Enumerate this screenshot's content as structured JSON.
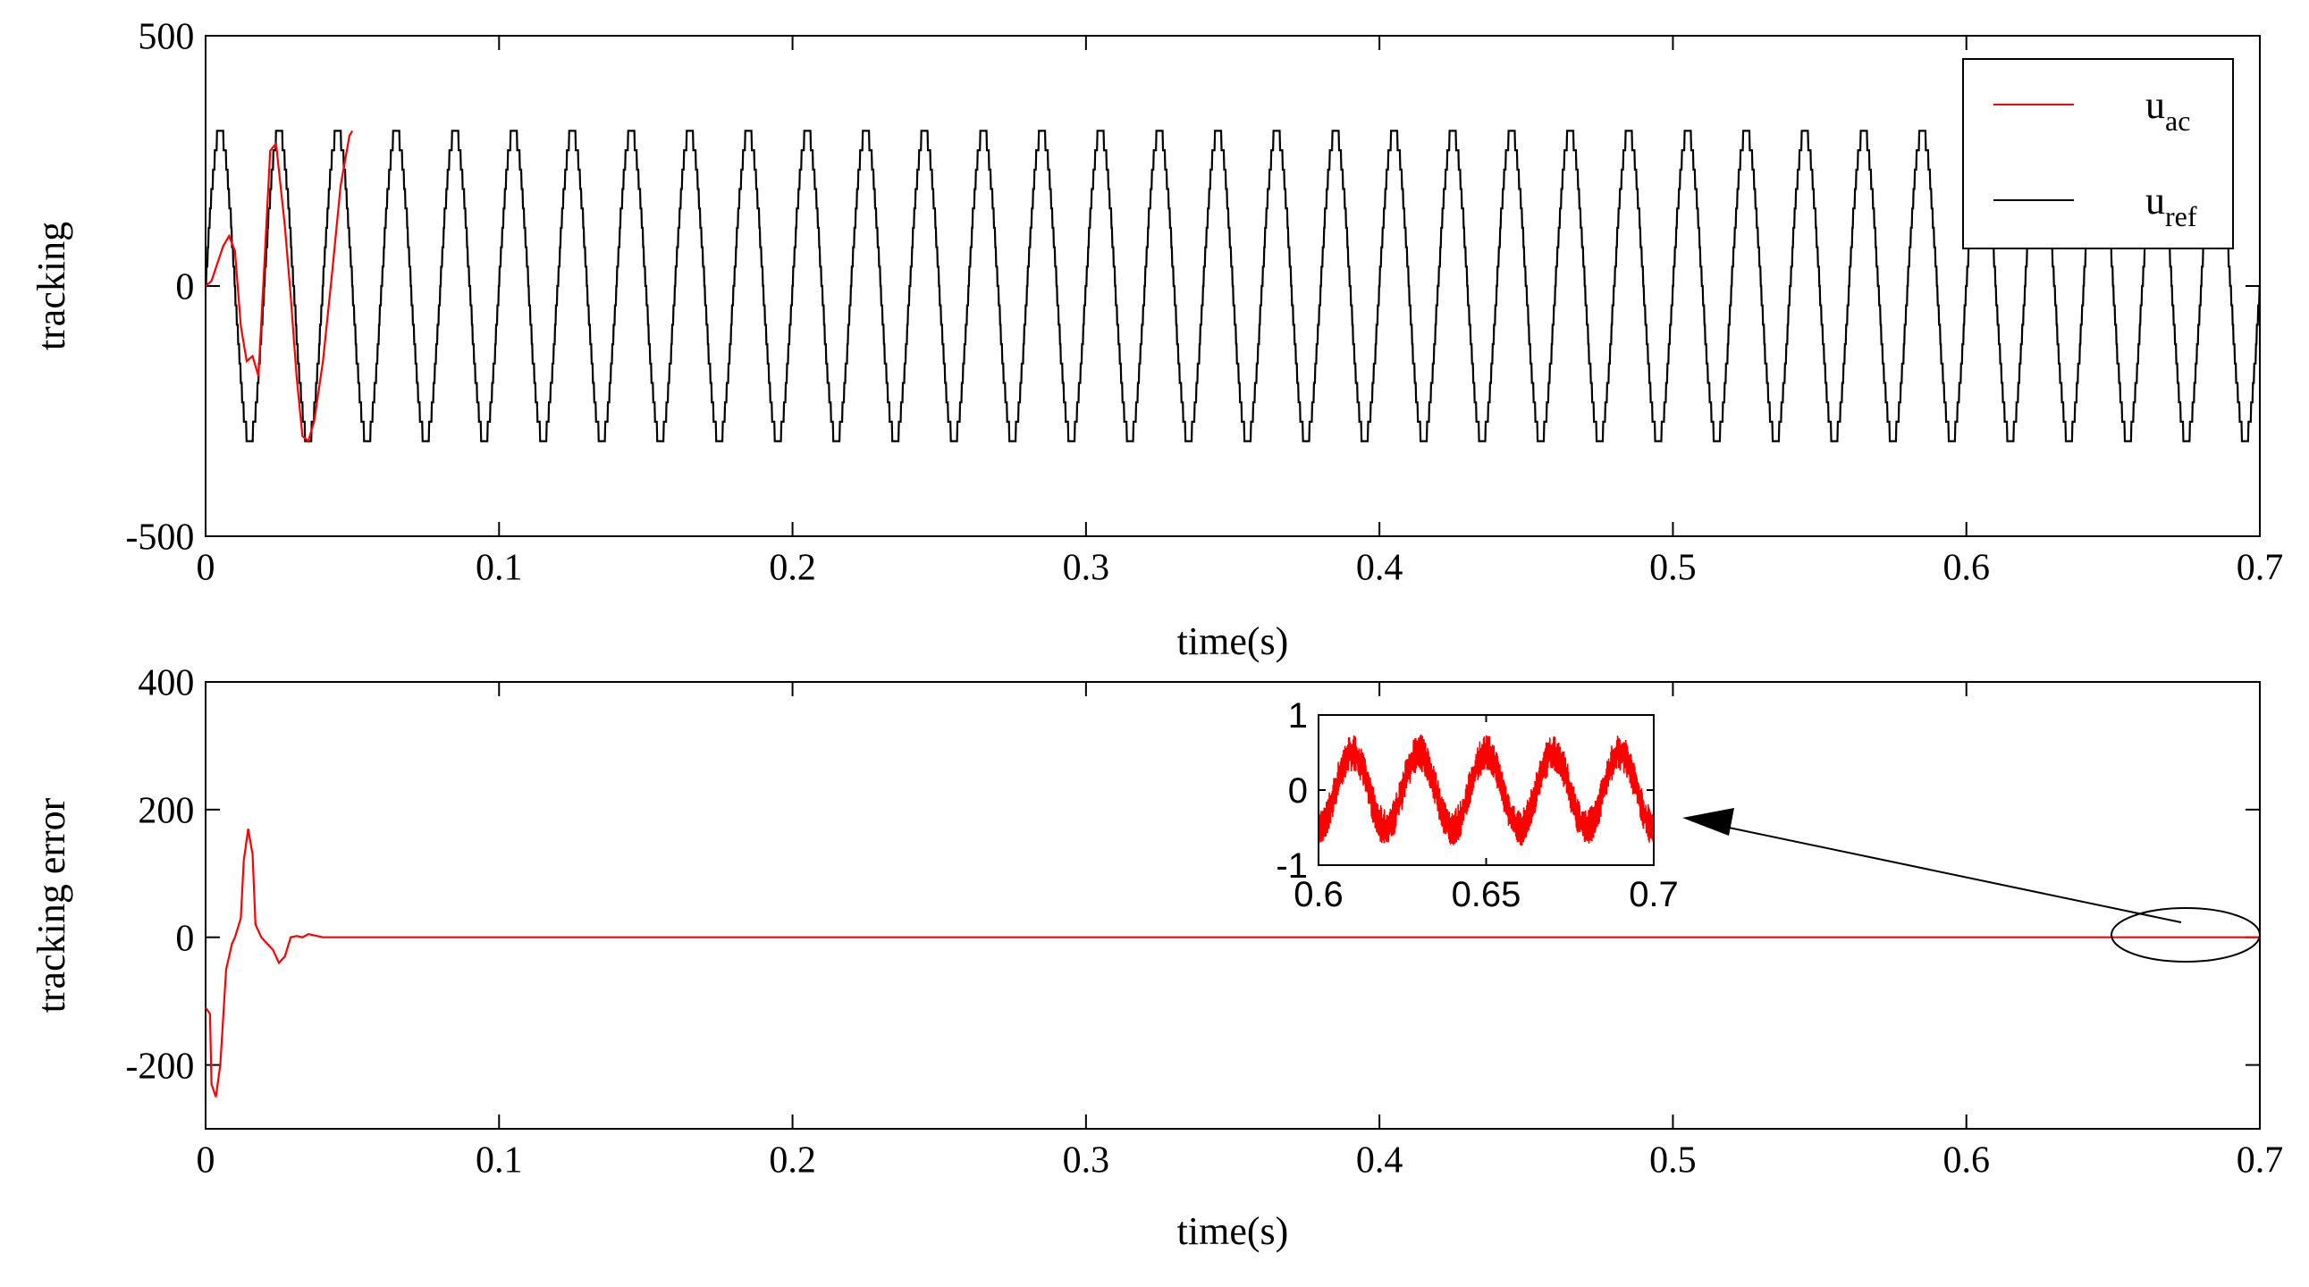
{
  "chart_data": [
    {
      "type": "line",
      "ylabel": "tracking",
      "xlabel": "time(s)",
      "xlim": [
        0,
        0.7
      ],
      "ylim": [
        -500,
        500
      ],
      "xticks": [
        0,
        0.1,
        0.2,
        0.3,
        0.4,
        0.5,
        0.6,
        0.7
      ],
      "xtick_labels": [
        "0",
        "0.1",
        "0.2",
        "0.3",
        "0.4",
        "0.5",
        "0.6",
        "0.7"
      ],
      "yticks": [
        -500,
        0,
        500
      ],
      "ytick_labels": [
        "-500",
        "0",
        "500"
      ],
      "grid": false,
      "legend": "top-right",
      "series": [
        {
          "name": "uac",
          "name_main": "u",
          "name_sub": "ac",
          "color": "#ff0000",
          "points": [
            [
              0.0,
              0
            ],
            [
              0.002,
              10
            ],
            [
              0.004,
              45
            ],
            [
              0.006,
              80
            ],
            [
              0.008,
              100
            ],
            [
              0.01,
              70
            ],
            [
              0.012,
              -80
            ],
            [
              0.014,
              -150
            ],
            [
              0.016,
              -140
            ],
            [
              0.018,
              -180
            ],
            [
              0.02,
              40
            ],
            [
              0.022,
              270
            ],
            [
              0.024,
              285
            ],
            [
              0.025,
              230
            ],
            [
              0.027,
              120
            ],
            [
              0.029,
              -20
            ],
            [
              0.031,
              -180
            ],
            [
              0.033,
              -300
            ],
            [
              0.035,
              -310
            ],
            [
              0.037,
              -270
            ],
            [
              0.04,
              -150
            ],
            [
              0.043,
              20
            ],
            [
              0.046,
              200
            ],
            [
              0.049,
              300
            ],
            [
              0.05,
              310
            ]
          ]
        },
        {
          "name": "uref",
          "name_main": "u",
          "name_sub": "ref",
          "color": "#000000",
          "amplitude": 310,
          "frequency_hz": 50,
          "x_range": [
            0,
            0.7
          ]
        }
      ]
    },
    {
      "type": "line",
      "ylabel": "tracking error",
      "xlabel": "time(s)",
      "xlim": [
        0,
        0.7
      ],
      "ylim": [
        -300,
        400
      ],
      "xticks": [
        0,
        0.1,
        0.2,
        0.3,
        0.4,
        0.5,
        0.6,
        0.7
      ],
      "xtick_labels": [
        "0",
        "0.1",
        "0.2",
        "0.3",
        "0.4",
        "0.5",
        "0.6",
        "0.7"
      ],
      "yticks": [
        -200,
        0,
        200,
        400
      ],
      "ytick_labels": [
        "-200",
        "0",
        "200",
        "400"
      ],
      "grid": false,
      "series": [
        {
          "name": "",
          "color": "#ff0000",
          "points": [
            [
              0.0,
              -110
            ],
            [
              0.0015,
              -120
            ],
            [
              0.002,
              -230
            ],
            [
              0.0035,
              -250
            ],
            [
              0.005,
              -200
            ],
            [
              0.007,
              -50
            ],
            [
              0.009,
              -10
            ],
            [
              0.01,
              0
            ],
            [
              0.012,
              30
            ],
            [
              0.013,
              120
            ],
            [
              0.0145,
              170
            ],
            [
              0.016,
              130
            ],
            [
              0.017,
              20
            ],
            [
              0.019,
              0
            ],
            [
              0.021,
              -10
            ],
            [
              0.023,
              -20
            ],
            [
              0.025,
              -40
            ],
            [
              0.027,
              -30
            ],
            [
              0.029,
              0
            ],
            [
              0.031,
              2
            ],
            [
              0.033,
              0
            ],
            [
              0.035,
              5
            ],
            [
              0.04,
              0
            ],
            [
              0.7,
              0
            ]
          ]
        }
      ],
      "inset": {
        "xlim": [
          0.6,
          0.7
        ],
        "ylim": [
          -1,
          1
        ],
        "xticks": [
          0.6,
          0.65,
          0.7
        ],
        "xtick_labels": [
          "0.6",
          "0.65",
          "0.7"
        ],
        "yticks": [
          -1,
          0,
          1
        ],
        "ytick_labels": [
          "-1",
          "0",
          "1"
        ],
        "amplitude": 0.5,
        "frequency_hz": 50,
        "ripple": 0.25,
        "annotation": "ellipse and arrow highlighting the region 0.65–0.70 s"
      }
    }
  ]
}
